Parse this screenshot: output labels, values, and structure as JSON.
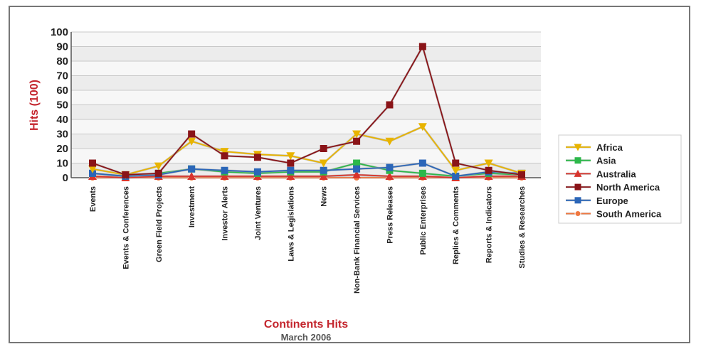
{
  "chart_data": {
    "type": "line",
    "title": "Continents Hits",
    "subtitle": "March 2006",
    "ylabel": "Hits (100)",
    "xlabel": "",
    "ylim": [
      0,
      100
    ],
    "yticks": [
      0,
      10,
      20,
      30,
      40,
      50,
      60,
      70,
      80,
      90,
      100
    ],
    "grid": true,
    "legend_position": "right",
    "categories": [
      "Events",
      "Events & Conferences",
      "Green Field Projects",
      "Investment",
      "Investor Alerts",
      "Joint Ventures",
      "Laws & Legislations",
      "News",
      "Non-Bank Financial Services",
      "Press Releases",
      "Public Enterprises",
      "Replies & Comments",
      "Reports & Indicators",
      "Studies & Researches"
    ],
    "series": [
      {
        "name": "Africa",
        "color": "#e8b400",
        "marker": "triangle-down",
        "values": [
          6,
          2,
          8,
          25,
          18,
          16,
          15,
          10,
          30,
          25,
          35,
          5,
          10,
          3
        ]
      },
      {
        "name": "Asia",
        "color": "#2db84a",
        "marker": "square",
        "values": [
          3,
          1,
          3,
          6,
          4,
          3,
          4,
          4,
          10,
          5,
          3,
          1,
          3,
          2
        ]
      },
      {
        "name": "Australia",
        "color": "#d8342c",
        "marker": "triangle-up",
        "values": [
          1,
          0,
          1,
          1,
          1,
          1,
          1,
          1,
          2,
          1,
          1,
          0,
          1,
          1
        ]
      },
      {
        "name": "North America",
        "color": "#8a1418",
        "marker": "square",
        "values": [
          10,
          2,
          3,
          30,
          15,
          14,
          10,
          20,
          25,
          50,
          90,
          10,
          5,
          2
        ]
      },
      {
        "name": "Europe",
        "color": "#2b66b8",
        "marker": "square",
        "values": [
          3,
          1,
          2,
          6,
          5,
          4,
          5,
          5,
          6,
          7,
          10,
          1,
          4,
          3
        ]
      },
      {
        "name": "South America",
        "color": "#f07840",
        "marker": "circle",
        "values": [
          0,
          0,
          0,
          0,
          0,
          0,
          0,
          0,
          0,
          0,
          0,
          0,
          0,
          0
        ]
      }
    ]
  }
}
